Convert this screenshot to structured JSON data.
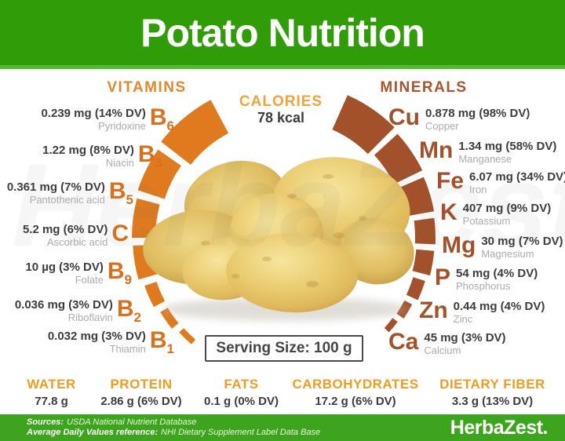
{
  "header": {
    "title": "Potato Nutrition"
  },
  "calories": {
    "heading": "CALORIES",
    "value": "78 kcal"
  },
  "vitamins": {
    "heading": "VITAMINS",
    "items": [
      {
        "symbol": "B",
        "sub": "6",
        "value": "0.239 mg (14% DV)",
        "name": "Pyridoxine",
        "dv": 14
      },
      {
        "symbol": "B",
        "sub": "3",
        "value": "1.22 mg (8% DV)",
        "name": "Niacin",
        "dv": 8
      },
      {
        "symbol": "B",
        "sub": "5",
        "value": "0.361 mg (7% DV)",
        "name": "Pantothenic acid",
        "dv": 7
      },
      {
        "symbol": "C",
        "sub": "",
        "value": "5.2 mg (6% DV)",
        "name": "Ascorbic acid",
        "dv": 6
      },
      {
        "symbol": "B",
        "sub": "9",
        "value": "10 µg (3% DV)",
        "name": "Folate",
        "dv": 3
      },
      {
        "symbol": "B",
        "sub": "2",
        "value": "0.036 mg (3% DV)",
        "name": "Riboflavin",
        "dv": 3
      },
      {
        "symbol": "B",
        "sub": "1",
        "value": "0.032 mg (3% DV)",
        "name": "Thiamin",
        "dv": 3
      }
    ]
  },
  "minerals": {
    "heading": "MINERALS",
    "items": [
      {
        "symbol": "Cu",
        "value": "0.878 mg (98% DV)",
        "name": "Copper",
        "dv": 98
      },
      {
        "symbol": "Mn",
        "value": "1.34 mg (58% DV)",
        "name": "Manganese",
        "dv": 58
      },
      {
        "symbol": "Fe",
        "value": "6.07 mg (34% DV)",
        "name": "Iron",
        "dv": 34
      },
      {
        "symbol": "K",
        "value": "407 mg (9% DV)",
        "name": "Potassium",
        "dv": 9
      },
      {
        "symbol": "Mg",
        "value": "30 mg (7% DV)",
        "name": "Magnesium",
        "dv": 7
      },
      {
        "symbol": "P",
        "value": "54 mg (4% DV)",
        "name": "Phosphorus",
        "dv": 4
      },
      {
        "symbol": "Zn",
        "value": "0.44 mg (4% DV)",
        "name": "Zinc",
        "dv": 4
      },
      {
        "symbol": "Ca",
        "value": "45 mg (3% DV)",
        "name": "Calcium",
        "dv": 3
      }
    ]
  },
  "serving": {
    "label": "Serving Size: 100 g"
  },
  "macros": [
    {
      "label": "WATER",
      "value": "77.8 g"
    },
    {
      "label": "PROTEIN",
      "value": "2.86 g (6% DV)"
    },
    {
      "label": "FATS",
      "value": "0.1 g (0% DV)"
    },
    {
      "label": "CARBOHYDRATES",
      "value": "17.2 g (6% DV)"
    },
    {
      "label": "DIETARY FIBER",
      "value": "3.3 g (13% DV)"
    }
  ],
  "footer": {
    "sources_label": "Sources:",
    "sources": "USDA National Nutrient Database",
    "adv_label": "Average Daily Values reference:",
    "adv": "NHI Dietary Supplement Label Data Base",
    "brand": "HerbaZest."
  },
  "colors": {
    "header_green": "#2F9C08",
    "footer_green": "#3DA51D",
    "vitamin_orange": "#DF7A1E",
    "mineral_brown": "#A2512A",
    "vitamins_heading": "#E2872E",
    "minerals_heading": "#A8542C",
    "calories_orange": "#F2A43B",
    "macro_orange": "#EF9D20",
    "value_dark": "#3D3D3D",
    "name_gray": "#ABABAB"
  }
}
